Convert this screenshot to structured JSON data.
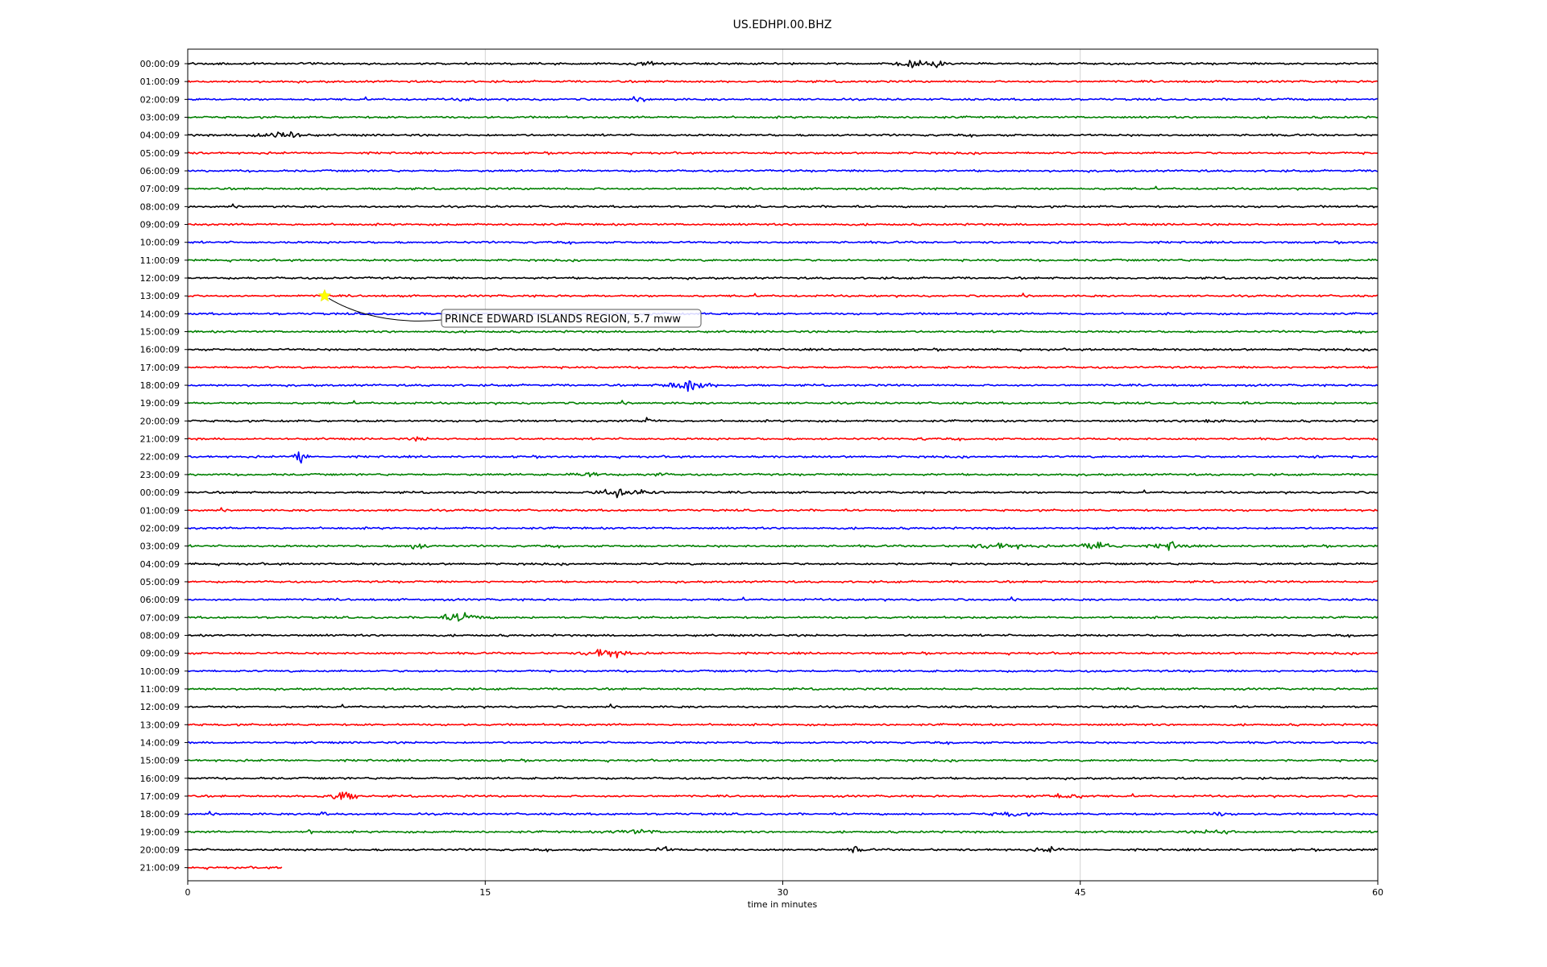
{
  "chart_data": {
    "type": "line",
    "title": "US.EDHPI.00.BHZ",
    "xlabel": "time in minutes",
    "ylabel": "",
    "xlim": [
      0,
      60
    ],
    "x_ticks": [
      0,
      15,
      30,
      45,
      60
    ],
    "x_tick_labels": [
      "0",
      "15",
      "30",
      "45",
      "60"
    ],
    "grid": "vertical at x ticks",
    "colors": [
      "#000000",
      "#ff0000",
      "#0000ff",
      "#008000"
    ],
    "rows": [
      {
        "label": "00:00:09",
        "events": [
          {
            "t": 23.3,
            "amp": 0.3,
            "dur": 1.5
          },
          {
            "t": 36.7,
            "amp": 0.45,
            "dur": 1.8
          },
          {
            "t": 37.9,
            "amp": 0.6,
            "dur": 0.5
          }
        ]
      },
      {
        "label": "01:00:09",
        "events": []
      },
      {
        "label": "02:00:09",
        "events": [
          {
            "t": 14.0,
            "amp": 0.2,
            "dur": 1.0
          },
          {
            "t": 23.0,
            "amp": 0.25,
            "dur": 0.8
          },
          {
            "t": 55.5,
            "amp": 0.2,
            "dur": 0.5
          }
        ]
      },
      {
        "label": "03:00:09",
        "events": []
      },
      {
        "label": "04:00:09",
        "events": [
          {
            "t": 4.5,
            "amp": 0.6,
            "dur": 2.5
          },
          {
            "t": 5.2,
            "amp": 0.8,
            "dur": 0.4
          }
        ]
      },
      {
        "label": "05:00:09",
        "events": []
      },
      {
        "label": "06:00:09",
        "events": []
      },
      {
        "label": "07:00:09",
        "events": []
      },
      {
        "label": "08:00:09",
        "events": []
      },
      {
        "label": "09:00:09",
        "events": []
      },
      {
        "label": "10:00:09",
        "events": []
      },
      {
        "label": "11:00:09",
        "events": []
      },
      {
        "label": "12:00:09",
        "events": []
      },
      {
        "label": "13:00:09",
        "events": []
      },
      {
        "label": "14:00:09",
        "events": []
      },
      {
        "label": "15:00:09",
        "events": []
      },
      {
        "label": "16:00:09",
        "events": []
      },
      {
        "label": "17:00:09",
        "events": []
      },
      {
        "label": "18:00:09",
        "events": [
          {
            "t": 25.2,
            "amp": 1.0,
            "dur": 2.0
          }
        ]
      },
      {
        "label": "19:00:09",
        "events": [
          {
            "t": 53.0,
            "amp": 0.25,
            "dur": 0.6
          }
        ]
      },
      {
        "label": "20:00:09",
        "events": [
          {
            "t": 23.2,
            "amp": 0.55,
            "dur": 0.6
          },
          {
            "t": 51.5,
            "amp": 0.3,
            "dur": 2.0
          }
        ]
      },
      {
        "label": "21:00:09",
        "events": [
          {
            "t": 11.7,
            "amp": 0.4,
            "dur": 0.6
          },
          {
            "t": 37.0,
            "amp": 0.2,
            "dur": 0.4
          }
        ]
      },
      {
        "label": "22:00:09",
        "events": [
          {
            "t": 5.7,
            "amp": 1.4,
            "dur": 0.6
          },
          {
            "t": 57.0,
            "amp": 0.2,
            "dur": 0.8
          }
        ]
      },
      {
        "label": "23:00:09",
        "events": [
          {
            "t": 20.3,
            "amp": 0.4,
            "dur": 1.5
          },
          {
            "t": 23.7,
            "amp": 0.3,
            "dur": 0.8
          }
        ]
      },
      {
        "label": "00:00:09",
        "events": [
          {
            "t": 21.0,
            "amp": 0.7,
            "dur": 1.0
          },
          {
            "t": 21.8,
            "amp": 1.2,
            "dur": 0.5
          },
          {
            "t": 23.0,
            "amp": 0.6,
            "dur": 1.5
          }
        ]
      },
      {
        "label": "01:00:09",
        "events": []
      },
      {
        "label": "02:00:09",
        "events": []
      },
      {
        "label": "03:00:09",
        "events": [
          {
            "t": 11.5,
            "amp": 0.6,
            "dur": 1.0
          },
          {
            "t": 41.0,
            "amp": 0.4,
            "dur": 3.0
          },
          {
            "t": 46.0,
            "amp": 0.8,
            "dur": 2.0
          },
          {
            "t": 49.5,
            "amp": 0.6,
            "dur": 1.5
          }
        ]
      },
      {
        "label": "04:00:09",
        "events": []
      },
      {
        "label": "05:00:09",
        "events": []
      },
      {
        "label": "06:00:09",
        "events": []
      },
      {
        "label": "07:00:09",
        "events": [
          {
            "t": 13.8,
            "amp": 0.7,
            "dur": 2.0
          }
        ]
      },
      {
        "label": "08:00:09",
        "events": []
      },
      {
        "label": "09:00:09",
        "events": [
          {
            "t": 20.8,
            "amp": 0.6,
            "dur": 1.5
          },
          {
            "t": 21.4,
            "amp": 1.0,
            "dur": 0.5
          },
          {
            "t": 22.1,
            "amp": 0.5,
            "dur": 0.6
          }
        ]
      },
      {
        "label": "10:00:09",
        "events": []
      },
      {
        "label": "11:00:09",
        "events": []
      },
      {
        "label": "12:00:09",
        "events": []
      },
      {
        "label": "13:00:09",
        "events": []
      },
      {
        "label": "14:00:09",
        "events": []
      },
      {
        "label": "15:00:09",
        "events": []
      },
      {
        "label": "16:00:09",
        "events": []
      },
      {
        "label": "17:00:09",
        "events": [
          {
            "t": 7.8,
            "amp": 0.8,
            "dur": 1.5
          },
          {
            "t": 44.0,
            "amp": 0.4,
            "dur": 2.5
          }
        ]
      },
      {
        "label": "18:00:09",
        "events": [
          {
            "t": 6.8,
            "amp": 0.3,
            "dur": 1.0
          },
          {
            "t": 41.5,
            "amp": 0.3,
            "dur": 2.0
          },
          {
            "t": 52.0,
            "amp": 0.25,
            "dur": 1.0
          }
        ]
      },
      {
        "label": "19:00:09",
        "events": [
          {
            "t": 6.2,
            "amp": 0.35,
            "dur": 0.6
          },
          {
            "t": 22.5,
            "amp": 0.3,
            "dur": 2.5
          },
          {
            "t": 52.0,
            "amp": 0.3,
            "dur": 2.0
          }
        ]
      },
      {
        "label": "20:00:09",
        "events": [
          {
            "t": 24.0,
            "amp": 0.4,
            "dur": 1.0
          },
          {
            "t": 33.7,
            "amp": 0.8,
            "dur": 0.4
          },
          {
            "t": 43.5,
            "amp": 0.3,
            "dur": 1.5
          }
        ]
      },
      {
        "label": "21:00:09",
        "events": [],
        "end_x": 4.8
      }
    ],
    "annotation": {
      "text": "PRINCE EDWARD ISLANDS REGION, 5.7 mww",
      "row_index": 13,
      "t": 6.9,
      "marker": "star",
      "marker_color": "#ffff00"
    }
  }
}
